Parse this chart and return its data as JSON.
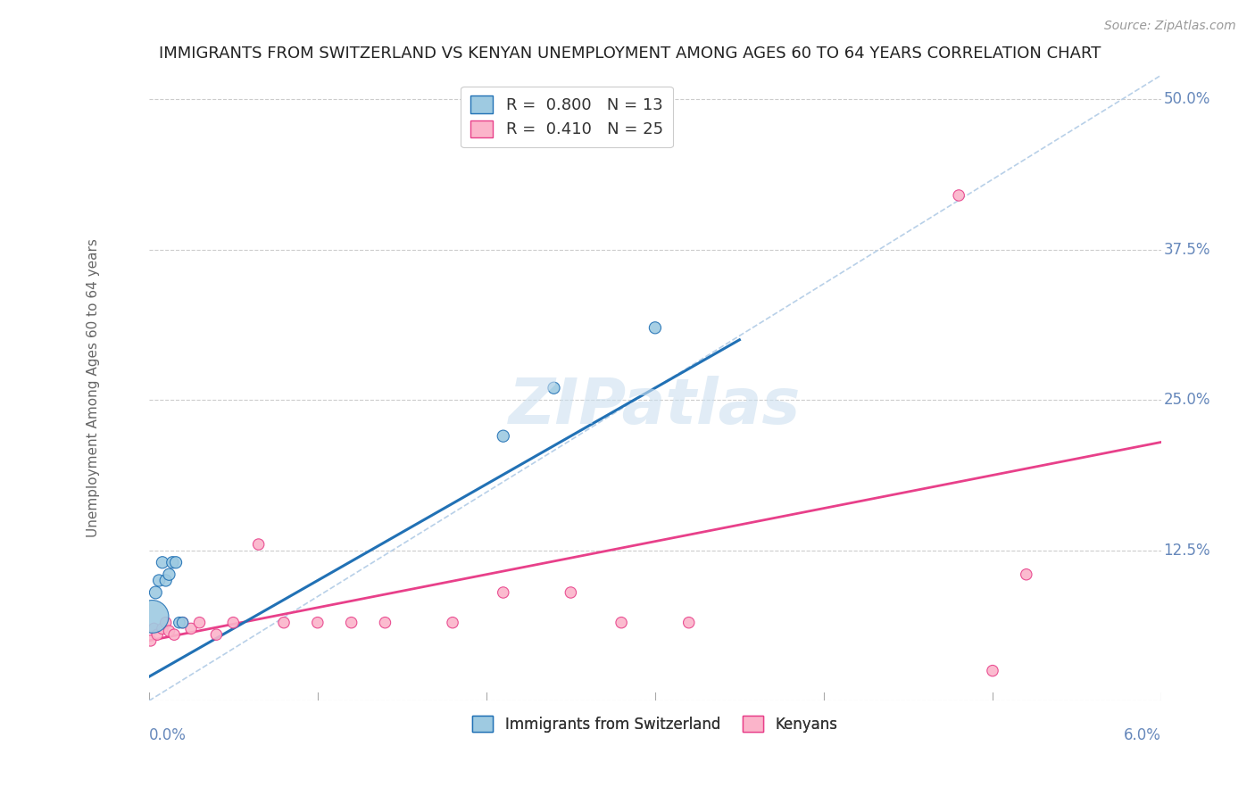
{
  "title": "IMMIGRANTS FROM SWITZERLAND VS KENYAN UNEMPLOYMENT AMONG AGES 60 TO 64 YEARS CORRELATION CHART",
  "source": "Source: ZipAtlas.com",
  "ylabel": "Unemployment Among Ages 60 to 64 years",
  "xlim": [
    0.0,
    0.06
  ],
  "ylim": [
    0.0,
    0.52
  ],
  "watermark": "ZIPatlas",
  "swiss_scatter_x": [
    0.0002,
    0.0004,
    0.0006,
    0.0008,
    0.001,
    0.0012,
    0.0014,
    0.0016,
    0.0018,
    0.002,
    0.021,
    0.024,
    0.03
  ],
  "swiss_scatter_y": [
    0.07,
    0.09,
    0.1,
    0.115,
    0.1,
    0.105,
    0.115,
    0.115,
    0.065,
    0.065,
    0.22,
    0.26,
    0.31
  ],
  "swiss_scatter_sizes": [
    700,
    100,
    90,
    90,
    90,
    90,
    90,
    90,
    80,
    80,
    90,
    90,
    90
  ],
  "kenya_scatter_x": [
    0.0001,
    0.0003,
    0.0005,
    0.0008,
    0.001,
    0.0012,
    0.0015,
    0.002,
    0.0025,
    0.003,
    0.004,
    0.005,
    0.0065,
    0.008,
    0.01,
    0.012,
    0.014,
    0.018,
    0.021,
    0.025,
    0.028,
    0.032,
    0.048,
    0.052,
    0.05
  ],
  "kenya_scatter_y": [
    0.05,
    0.06,
    0.055,
    0.06,
    0.065,
    0.058,
    0.055,
    0.065,
    0.06,
    0.065,
    0.055,
    0.065,
    0.13,
    0.065,
    0.065,
    0.065,
    0.065,
    0.065,
    0.09,
    0.09,
    0.065,
    0.065,
    0.42,
    0.105,
    0.025
  ],
  "kenya_scatter_sizes": [
    80,
    80,
    80,
    80,
    80,
    80,
    80,
    80,
    80,
    80,
    80,
    80,
    80,
    80,
    80,
    80,
    80,
    80,
    80,
    80,
    80,
    80,
    80,
    80,
    80
  ],
  "swiss_line_x0": 0.0,
  "swiss_line_y0": 0.02,
  "swiss_line_x1": 0.035,
  "swiss_line_y1": 0.3,
  "kenya_line_x0": 0.0,
  "kenya_line_y0": 0.05,
  "kenya_line_x1": 0.06,
  "kenya_line_y1": 0.215,
  "dash_line_x0": 0.0,
  "dash_line_y0": 0.0,
  "dash_line_x1": 0.06,
  "dash_line_y1": 0.52,
  "swiss_line_color": "#2171b5",
  "swiss_scatter_color": "#9ecae1",
  "swiss_scatter_edge": "#2171b5",
  "kenya_line_color": "#e8408a",
  "kenya_scatter_color": "#fbb4ca",
  "kenya_scatter_edge": "#e8408a",
  "trendline_dash_color": "#b8d0e8",
  "swiss_R": 0.8,
  "swiss_N": 13,
  "kenya_R": 0.41,
  "kenya_N": 25,
  "background_color": "#ffffff",
  "grid_color": "#cccccc",
  "tick_color": "#6688bb",
  "title_color": "#222222",
  "title_fontsize": 13,
  "axis_label_color": "#666666",
  "watermark_color": "#cde0f0",
  "yticks": [
    0.0,
    0.125,
    0.25,
    0.375,
    0.5
  ],
  "ytick_labels": [
    "",
    "12.5%",
    "25.0%",
    "37.5%",
    "50.0%"
  ],
  "xtick_left_label": "0.0%",
  "xtick_right_label": "6.0%"
}
